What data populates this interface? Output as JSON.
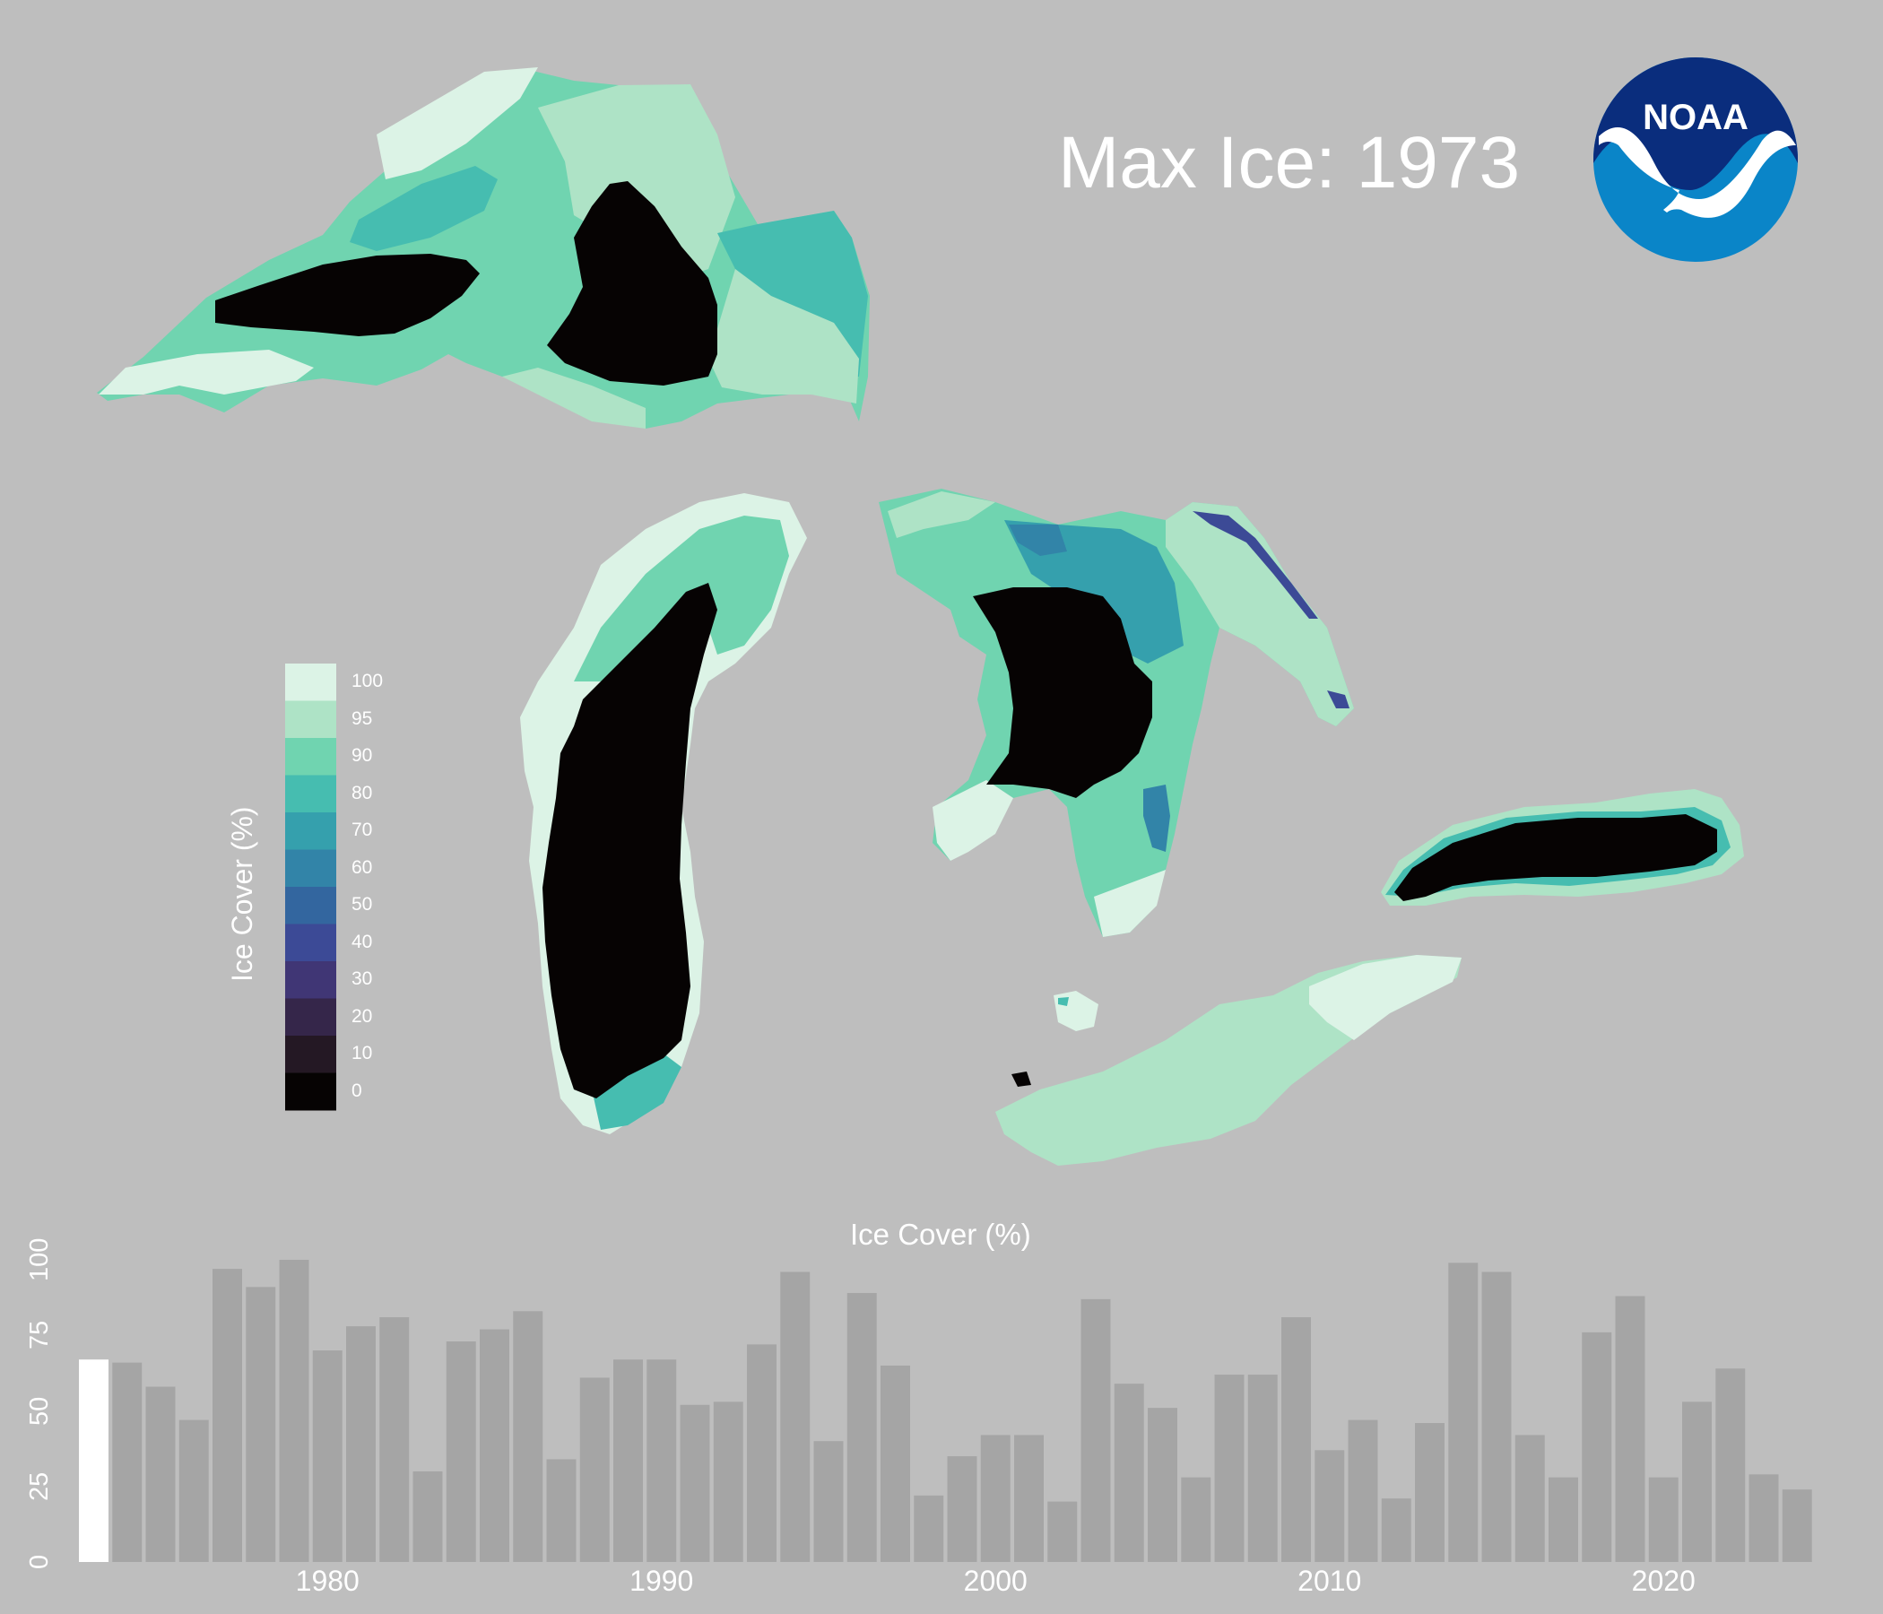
{
  "title": "Max Ice: 1973",
  "logo": {
    "text": "NOAA",
    "colors": {
      "dark": "#0a2d7d",
      "light": "#0a85c8",
      "white": "#ffffff"
    }
  },
  "legend": {
    "title": "Ice Cover (%)",
    "ticks": [
      "100",
      "95",
      "90",
      "80",
      "70",
      "60",
      "50",
      "40",
      "30",
      "20",
      "10",
      "0"
    ],
    "colors": [
      "#dcf3e6",
      "#aee3c6",
      "#70d4b0",
      "#46bdb0",
      "#35a0ad",
      "#3284a8",
      "#33669f",
      "#3c4a96",
      "#403675",
      "#35264a",
      "#241824",
      "#060303"
    ]
  },
  "chart_data": {
    "type": "bar",
    "title": "Ice Cover (%)",
    "ylim": [
      0,
      100
    ],
    "yticks": [
      "0",
      "25",
      "50",
      "75",
      "100"
    ],
    "xticks": [
      "1980",
      "1990",
      "2000",
      "2010",
      "2020"
    ],
    "highlight_year": 1973,
    "highlight_color": "#ffffff",
    "bar_color": "#a5a5a5",
    "x": [
      1973,
      1974,
      1975,
      1976,
      1977,
      1978,
      1979,
      1980,
      1981,
      1982,
      1983,
      1984,
      1985,
      1986,
      1987,
      1988,
      1989,
      1990,
      1991,
      1992,
      1993,
      1994,
      1995,
      1996,
      1997,
      1998,
      1999,
      2000,
      2001,
      2002,
      2003,
      2004,
      2005,
      2006,
      2007,
      2008,
      2009,
      2010,
      2011,
      2012,
      2013,
      2014,
      2015,
      2016,
      2017,
      2018,
      2019,
      2020,
      2021,
      2022,
      2023,
      2024
    ],
    "values": [
      67,
      66,
      58,
      47,
      97,
      91,
      100,
      70,
      78,
      81,
      30,
      73,
      77,
      83,
      34,
      61,
      67,
      67,
      52,
      53,
      72,
      96,
      40,
      89,
      65,
      22,
      35,
      42,
      42,
      20,
      87,
      59,
      51,
      28,
      62,
      62,
      81,
      37,
      47,
      21,
      46,
      99,
      96,
      42,
      28,
      76,
      88,
      28,
      53,
      64,
      29,
      24
    ]
  }
}
